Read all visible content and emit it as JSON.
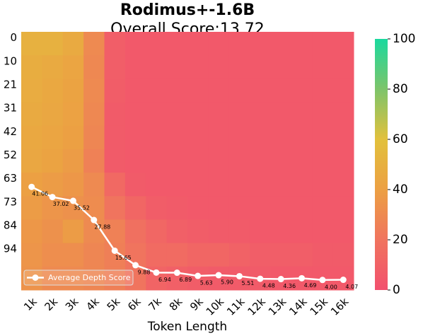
{
  "chart_data": {
    "type": "heatmap",
    "title": "Rodimus+-1.6B",
    "subtitle": "Overall Score:13.72",
    "xlabel": "Token Length",
    "categories": [
      "1k",
      "2k",
      "3k",
      "4k",
      "5k",
      "6k",
      "7k",
      "8k",
      "9k",
      "10k",
      "11k",
      "12k",
      "13k",
      "14k",
      "15k",
      "16k"
    ],
    "rows": [
      "0",
      "10",
      "21",
      "31",
      "42",
      "52",
      "63",
      "73",
      "84",
      "94",
      null
    ],
    "z": [
      [
        50,
        50,
        46,
        30,
        8,
        5,
        5,
        5,
        5,
        5,
        5,
        5,
        5,
        5,
        5,
        5
      ],
      [
        48,
        46,
        43,
        29,
        8,
        5,
        5,
        5,
        5,
        5,
        5,
        5,
        5,
        5,
        5,
        5
      ],
      [
        47,
        45,
        42,
        30,
        7,
        5,
        5,
        5,
        5,
        5,
        5,
        5,
        5,
        5,
        5,
        5
      ],
      [
        46,
        44,
        41,
        29,
        6,
        5,
        5,
        5,
        5,
        5,
        5,
        5,
        5,
        5,
        5,
        5
      ],
      [
        45,
        43,
        40,
        28,
        6,
        5,
        5,
        5,
        5,
        5,
        5,
        5,
        5,
        5,
        5,
        5
      ],
      [
        44,
        42,
        38,
        26,
        6,
        5,
        5,
        5,
        5,
        5,
        5,
        5,
        5,
        5,
        5,
        5
      ],
      [
        40,
        38,
        36,
        30,
        14,
        6,
        5,
        5,
        5,
        5,
        5,
        5,
        5,
        5,
        5,
        5
      ],
      [
        38,
        35,
        33,
        31,
        20,
        12,
        7,
        6,
        5,
        5,
        5,
        5,
        5,
        5,
        5,
        5
      ],
      [
        36,
        33,
        38,
        30,
        26,
        18,
        13,
        9,
        7,
        6,
        6,
        5,
        5,
        5,
        5,
        5
      ],
      [
        35,
        32,
        32,
        28,
        25,
        20,
        15,
        15,
        12,
        12,
        10,
        8,
        8,
        8,
        6,
        6
      ],
      [
        34,
        30,
        30,
        28,
        25,
        20,
        11,
        9,
        7,
        6,
        6,
        6,
        5,
        5,
        5,
        5
      ]
    ],
    "colorscale": [
      "#f2506e",
      "#f0745e",
      "#eca043",
      "#e2c13c",
      "#7dc46a",
      "#1ad99e"
    ],
    "clim": [
      0,
      100
    ],
    "cticks": [
      0,
      20,
      40,
      60,
      80,
      100
    ],
    "series": [
      {
        "name": "Average Depth Score",
        "color": "#ffffff",
        "values": [
          41.06,
          37.02,
          35.52,
          27.88,
          15.65,
          9.88,
          6.94,
          6.89,
          5.63,
          5.9,
          5.51,
          4.48,
          4.36,
          4.69,
          4,
          4.07
        ],
        "value_labels": [
          "41.06",
          "37.02",
          "35.52",
          "27.88",
          "15.65",
          "9.88",
          "6.94",
          "6.89",
          "5.63",
          "5.90",
          "5.51",
          "4.48",
          "4.36",
          "4.69",
          "4.00",
          "4.07"
        ]
      }
    ],
    "legend": "lower left"
  }
}
